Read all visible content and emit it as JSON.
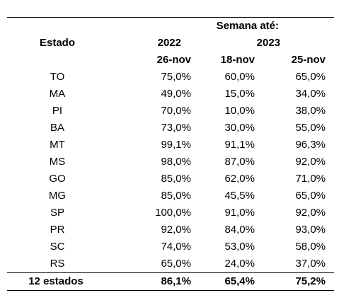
{
  "header": {
    "group_label": "Semana até:",
    "state_label": "Estado",
    "year_a": "2022",
    "year_b": "2023",
    "dates": [
      "26-nov",
      "18-nov",
      "25-nov"
    ]
  },
  "rows": [
    {
      "state": "TO",
      "values": [
        "75,0%",
        "60,0%",
        "65,0%"
      ]
    },
    {
      "state": "MA",
      "values": [
        "49,0%",
        "15,0%",
        "34,0%"
      ]
    },
    {
      "state": "PI",
      "values": [
        "70,0%",
        "10,0%",
        "38,0%"
      ]
    },
    {
      "state": "BA",
      "values": [
        "73,0%",
        "30,0%",
        "55,0%"
      ]
    },
    {
      "state": "MT",
      "values": [
        "99,1%",
        "91,1%",
        "96,3%"
      ]
    },
    {
      "state": "MS",
      "values": [
        "98,0%",
        "87,0%",
        "92,0%"
      ]
    },
    {
      "state": "GO",
      "values": [
        "85,0%",
        "62,0%",
        "71,0%"
      ]
    },
    {
      "state": "MG",
      "values": [
        "85,0%",
        "45,5%",
        "65,0%"
      ]
    },
    {
      "state": "SP",
      "values": [
        "100,0%",
        "91,0%",
        "92,0%"
      ]
    },
    {
      "state": "PR",
      "values": [
        "92,0%",
        "84,0%",
        "93,0%"
      ]
    },
    {
      "state": "SC",
      "values": [
        "74,0%",
        "53,0%",
        "58,0%"
      ]
    },
    {
      "state": "RS",
      "values": [
        "65,0%",
        "24,0%",
        "37,0%"
      ]
    }
  ],
  "total": {
    "label": "12 estados",
    "values": [
      "86,1%",
      "65,4%",
      "75,2%"
    ]
  }
}
